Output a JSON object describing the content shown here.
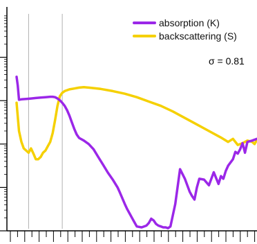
{
  "chart_data": {
    "type": "line",
    "title": "",
    "xlabel": "",
    "ylabel": "",
    "x_range": [
      0,
      100
    ],
    "y_range": [
      -3,
      2
    ],
    "y_scale": "log",
    "grid": false,
    "legend_position": "top-right",
    "vertical_markers": [
      5,
      19
    ],
    "annotation": "σ = 0.81",
    "colors": {
      "absorption": "#9b27e8",
      "backscattering": "#f5d000",
      "marker": "#b0b0b0",
      "axis": "#000000"
    },
    "series": [
      {
        "name": "absorption (K)",
        "x": [
          0,
          0.5,
          1,
          2,
          4,
          6,
          8,
          10,
          12,
          14,
          15,
          16,
          17,
          18,
          19,
          20,
          21,
          22,
          23,
          24,
          25,
          26,
          28,
          30,
          32,
          34,
          36,
          38,
          40,
          42,
          43,
          44,
          45,
          46,
          47,
          48,
          49,
          50,
          52,
          54,
          55,
          56,
          57,
          58,
          59,
          60,
          61,
          62,
          63,
          64,
          66,
          68,
          70,
          72,
          73,
          74,
          75,
          76,
          78,
          80,
          82,
          84,
          85,
          86,
          87,
          88,
          90,
          91,
          92,
          93,
          94,
          95,
          96,
          98,
          100
        ],
        "y": [
          0.55,
          0.35,
          0.02,
          0.03,
          0.04,
          0.05,
          0.06,
          0.07,
          0.08,
          0.09,
          0.09,
          0.08,
          0.05,
          0.01,
          -0.05,
          -0.12,
          -0.22,
          -0.35,
          -0.5,
          -0.65,
          -0.78,
          -0.86,
          -0.92,
          -1.0,
          -1.12,
          -1.3,
          -1.48,
          -1.66,
          -1.82,
          -2.0,
          -2.12,
          -2.25,
          -2.38,
          -2.5,
          -2.6,
          -2.7,
          -2.8,
          -2.9,
          -2.92,
          -2.88,
          -2.82,
          -2.72,
          -2.76,
          -2.84,
          -2.88,
          -2.9,
          -2.92,
          -2.92,
          -2.94,
          -2.9,
          -2.38,
          -1.58,
          -1.8,
          -2.1,
          -2.2,
          -2.28,
          -2.0,
          -1.8,
          -1.82,
          -1.95,
          -1.65,
          -1.92,
          -1.74,
          -1.8,
          -1.62,
          -1.5,
          -1.35,
          -1.18,
          -1.22,
          -1.12,
          -0.98,
          -1.2,
          -0.95,
          -0.92,
          -0.88
        ]
      },
      {
        "name": "backscattering (S)",
        "x": [
          0,
          1,
          2,
          3,
          4,
          5,
          6,
          7,
          8,
          9,
          10,
          11,
          12,
          13,
          14,
          15,
          16,
          17,
          18,
          19,
          20,
          22,
          24,
          26,
          28,
          30,
          35,
          40,
          45,
          50,
          55,
          60,
          65,
          70,
          75,
          80,
          85,
          88,
          90,
          92,
          94,
          96,
          98,
          99,
          100
        ],
        "y": [
          -0.05,
          -0.7,
          -0.95,
          -1.1,
          -1.15,
          -1.2,
          -1.1,
          -1.22,
          -1.35,
          -1.35,
          -1.3,
          -1.2,
          -1.15,
          -1.05,
          -0.95,
          -0.75,
          -0.45,
          -0.12,
          0.1,
          0.18,
          0.22,
          0.26,
          0.28,
          0.3,
          0.31,
          0.3,
          0.27,
          0.22,
          0.16,
          0.08,
          -0.02,
          -0.12,
          -0.25,
          -0.4,
          -0.55,
          -0.7,
          -0.85,
          -0.95,
          -0.88,
          -1.02,
          -0.98,
          -0.92,
          -0.95,
          -1.0,
          -0.9
        ]
      }
    ]
  }
}
